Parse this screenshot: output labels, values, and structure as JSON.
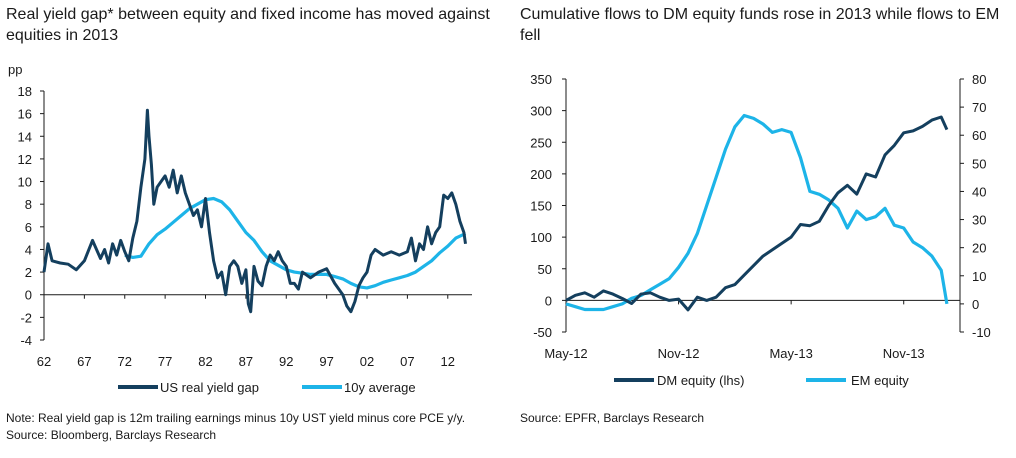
{
  "left_chart": {
    "title": "Real yield gap* between equity and fixed income has moved against equities in 2013",
    "note": "Note: Real yield gap is 12m trailing earnings minus 10y UST yield minus core PCE y/y.  Source: Bloomberg, Barclays Research",
    "colors": {
      "series1": "#143F5E",
      "series2": "#1DB4E8"
    }
  },
  "right_chart": {
    "title": "Cumulative flows to DM equity funds rose in 2013 while flows to EM fell",
    "note": "Source: EPFR, Barclays Research",
    "colors": {
      "series1": "#143F5E",
      "series2": "#1DB4E8"
    }
  },
  "chart_data": [
    {
      "type": "line",
      "title": "Real yield gap* between equity and fixed income has moved against equities in 2013",
      "ylabel": "pp",
      "xlabel": "",
      "ylim": [
        -4,
        18
      ],
      "yticks": [
        -4,
        -2,
        0,
        2,
        4,
        6,
        8,
        10,
        12,
        14,
        16,
        18
      ],
      "xlim": [
        1962,
        2015
      ],
      "xtick_labels": [
        "62",
        "67",
        "72",
        "77",
        "82",
        "87",
        "92",
        "97",
        "02",
        "07",
        "12"
      ],
      "xtick_values": [
        1962,
        1967,
        1972,
        1977,
        1982,
        1987,
        1992,
        1997,
        2002,
        2007,
        2012
      ],
      "legend_position": "bottom",
      "series": [
        {
          "name": "US real yield gap",
          "x": [
            1962.0,
            1962.5,
            1963,
            1964,
            1965,
            1966,
            1967,
            1968,
            1969,
            1969.5,
            1970,
            1970.5,
            1971,
            1971.5,
            1972,
            1972.5,
            1973,
            1973.5,
            1974,
            1974.5,
            1974.8,
            1975,
            1975.3,
            1975.6,
            1976,
            1976.5,
            1977,
            1977.5,
            1978,
            1978.5,
            1979,
            1979.5,
            1980,
            1980.5,
            1981,
            1981.5,
            1982,
            1982.5,
            1983,
            1983.5,
            1984,
            1984.5,
            1985,
            1985.5,
            1986,
            1986.5,
            1987,
            1987.3,
            1987.6,
            1988,
            1988.5,
            1989,
            1989.5,
            1990,
            1990.5,
            1991,
            1991.5,
            1992,
            1992.5,
            1993,
            1993.5,
            1994,
            1995,
            1996,
            1997,
            1998,
            1999,
            1999.5,
            2000,
            2000.5,
            2001,
            2001.5,
            2002,
            2002.5,
            2003,
            2004,
            2005,
            2006,
            2007,
            2007.5,
            2008,
            2008.5,
            2009,
            2009.5,
            2010,
            2010.5,
            2011,
            2011.5,
            2012,
            2012.5,
            2013,
            2013.5,
            2014,
            2014.2
          ],
          "values": [
            2.0,
            4.5,
            3.0,
            2.8,
            2.7,
            2.2,
            3.0,
            4.8,
            3.2,
            4.0,
            2.8,
            4.5,
            3.5,
            4.8,
            3.8,
            3.0,
            5.0,
            6.5,
            9.5,
            12.0,
            16.3,
            14.0,
            11.5,
            8.0,
            9.5,
            10.0,
            10.5,
            9.5,
            11.0,
            9.0,
            10.5,
            9.0,
            8.0,
            7.0,
            7.5,
            6.0,
            8.5,
            5.5,
            3.0,
            1.5,
            2.0,
            0.0,
            2.5,
            3.0,
            2.5,
            1.0,
            2.2,
            -0.8,
            -1.5,
            2.5,
            1.2,
            0.8,
            2.5,
            3.5,
            3.0,
            3.8,
            3.0,
            2.5,
            1.0,
            1.0,
            0.5,
            2.0,
            1.5,
            2.0,
            2.3,
            1.0,
            0.0,
            -1.0,
            -1.5,
            -0.6,
            0.8,
            1.5,
            2.0,
            3.5,
            4.0,
            3.5,
            3.8,
            3.5,
            3.8,
            5.0,
            3.0,
            4.5,
            4.0,
            6.0,
            4.5,
            5.5,
            6.0,
            8.8,
            8.5,
            9.0,
            8.0,
            6.5,
            5.5,
            4.5
          ]
        },
        {
          "name": "10y average",
          "x": [
            1972.0,
            1973,
            1974,
            1975,
            1976,
            1977,
            1978,
            1979,
            1980,
            1981,
            1982,
            1983,
            1984,
            1985,
            1986,
            1987,
            1988,
            1989,
            1990,
            1991,
            1992,
            1993,
            1994,
            1995,
            1996,
            1997,
            1998,
            1999,
            2000,
            2001,
            2002,
            2003,
            2004,
            2005,
            2006,
            2007,
            2008,
            2009,
            2010,
            2011,
            2012,
            2013,
            2014.2
          ],
          "values": [
            3.5,
            3.3,
            3.4,
            4.5,
            5.3,
            5.8,
            6.4,
            7.0,
            7.6,
            8.0,
            8.4,
            8.5,
            8.2,
            7.5,
            6.5,
            5.5,
            4.8,
            3.8,
            3.0,
            2.6,
            2.2,
            2.0,
            1.9,
            1.8,
            1.8,
            1.8,
            1.6,
            1.4,
            1.0,
            0.7,
            0.6,
            0.8,
            1.1,
            1.3,
            1.5,
            1.7,
            2.0,
            2.5,
            3.0,
            3.7,
            4.3,
            5.0,
            5.4
          ]
        }
      ]
    },
    {
      "type": "line",
      "title": "Cumulative flows to DM equity funds rose in 2013 while flows to EM fell",
      "xlabel": "",
      "ylim_left": [
        -50,
        350
      ],
      "yticks_left": [
        -50,
        0,
        50,
        100,
        150,
        200,
        250,
        300,
        350
      ],
      "ylim_right": [
        -10,
        80
      ],
      "yticks_right": [
        -10,
        0,
        10,
        20,
        30,
        40,
        50,
        60,
        70,
        80
      ],
      "xlim": [
        0,
        21
      ],
      "xtick_labels": [
        "May-12",
        "Nov-12",
        "May-13",
        "Nov-13"
      ],
      "xtick_values": [
        0,
        6,
        12,
        18
      ],
      "legend_position": "bottom",
      "series": [
        {
          "name": "DM equity (lhs)",
          "axis": "left",
          "x": [
            0,
            0.5,
            1,
            1.5,
            2,
            2.5,
            3,
            3.5,
            4,
            4.5,
            5,
            5.5,
            6,
            6.5,
            7,
            7.5,
            8,
            8.5,
            9,
            9.5,
            10,
            10.5,
            11,
            11.5,
            12,
            12.5,
            13,
            13.5,
            14,
            14.5,
            15,
            15.5,
            16,
            16.5,
            17,
            17.5,
            18,
            18.5,
            19,
            19.5,
            20,
            20.3
          ],
          "values": [
            0,
            8,
            12,
            5,
            15,
            10,
            3,
            -5,
            10,
            12,
            5,
            0,
            2,
            -15,
            5,
            0,
            5,
            20,
            25,
            40,
            55,
            70,
            80,
            90,
            100,
            120,
            118,
            125,
            150,
            170,
            182,
            168,
            200,
            195,
            230,
            245,
            265,
            268,
            275,
            285,
            290,
            270
          ]
        },
        {
          "name": "EM equity",
          "axis": "right",
          "x": [
            0,
            0.5,
            1,
            1.5,
            2,
            2.5,
            3,
            3.5,
            4,
            4.5,
            5,
            5.5,
            6,
            6.5,
            7,
            7.5,
            8,
            8.5,
            9,
            9.5,
            10,
            10.5,
            11,
            11.5,
            12,
            12.5,
            13,
            13.5,
            14,
            14.5,
            15,
            15.5,
            16,
            16.5,
            17,
            17.5,
            18,
            18.5,
            19,
            19.5,
            20,
            20.3
          ],
          "values": [
            0,
            -1,
            -2,
            -2,
            -2,
            -1,
            0,
            2,
            3,
            5,
            7,
            9,
            13,
            18,
            25,
            35,
            45,
            55,
            63,
            67,
            66,
            64,
            61,
            62,
            61,
            52,
            40,
            39,
            37,
            34,
            27,
            33,
            30,
            31,
            34,
            28,
            27,
            22,
            20,
            17,
            12,
            0
          ]
        }
      ]
    }
  ]
}
